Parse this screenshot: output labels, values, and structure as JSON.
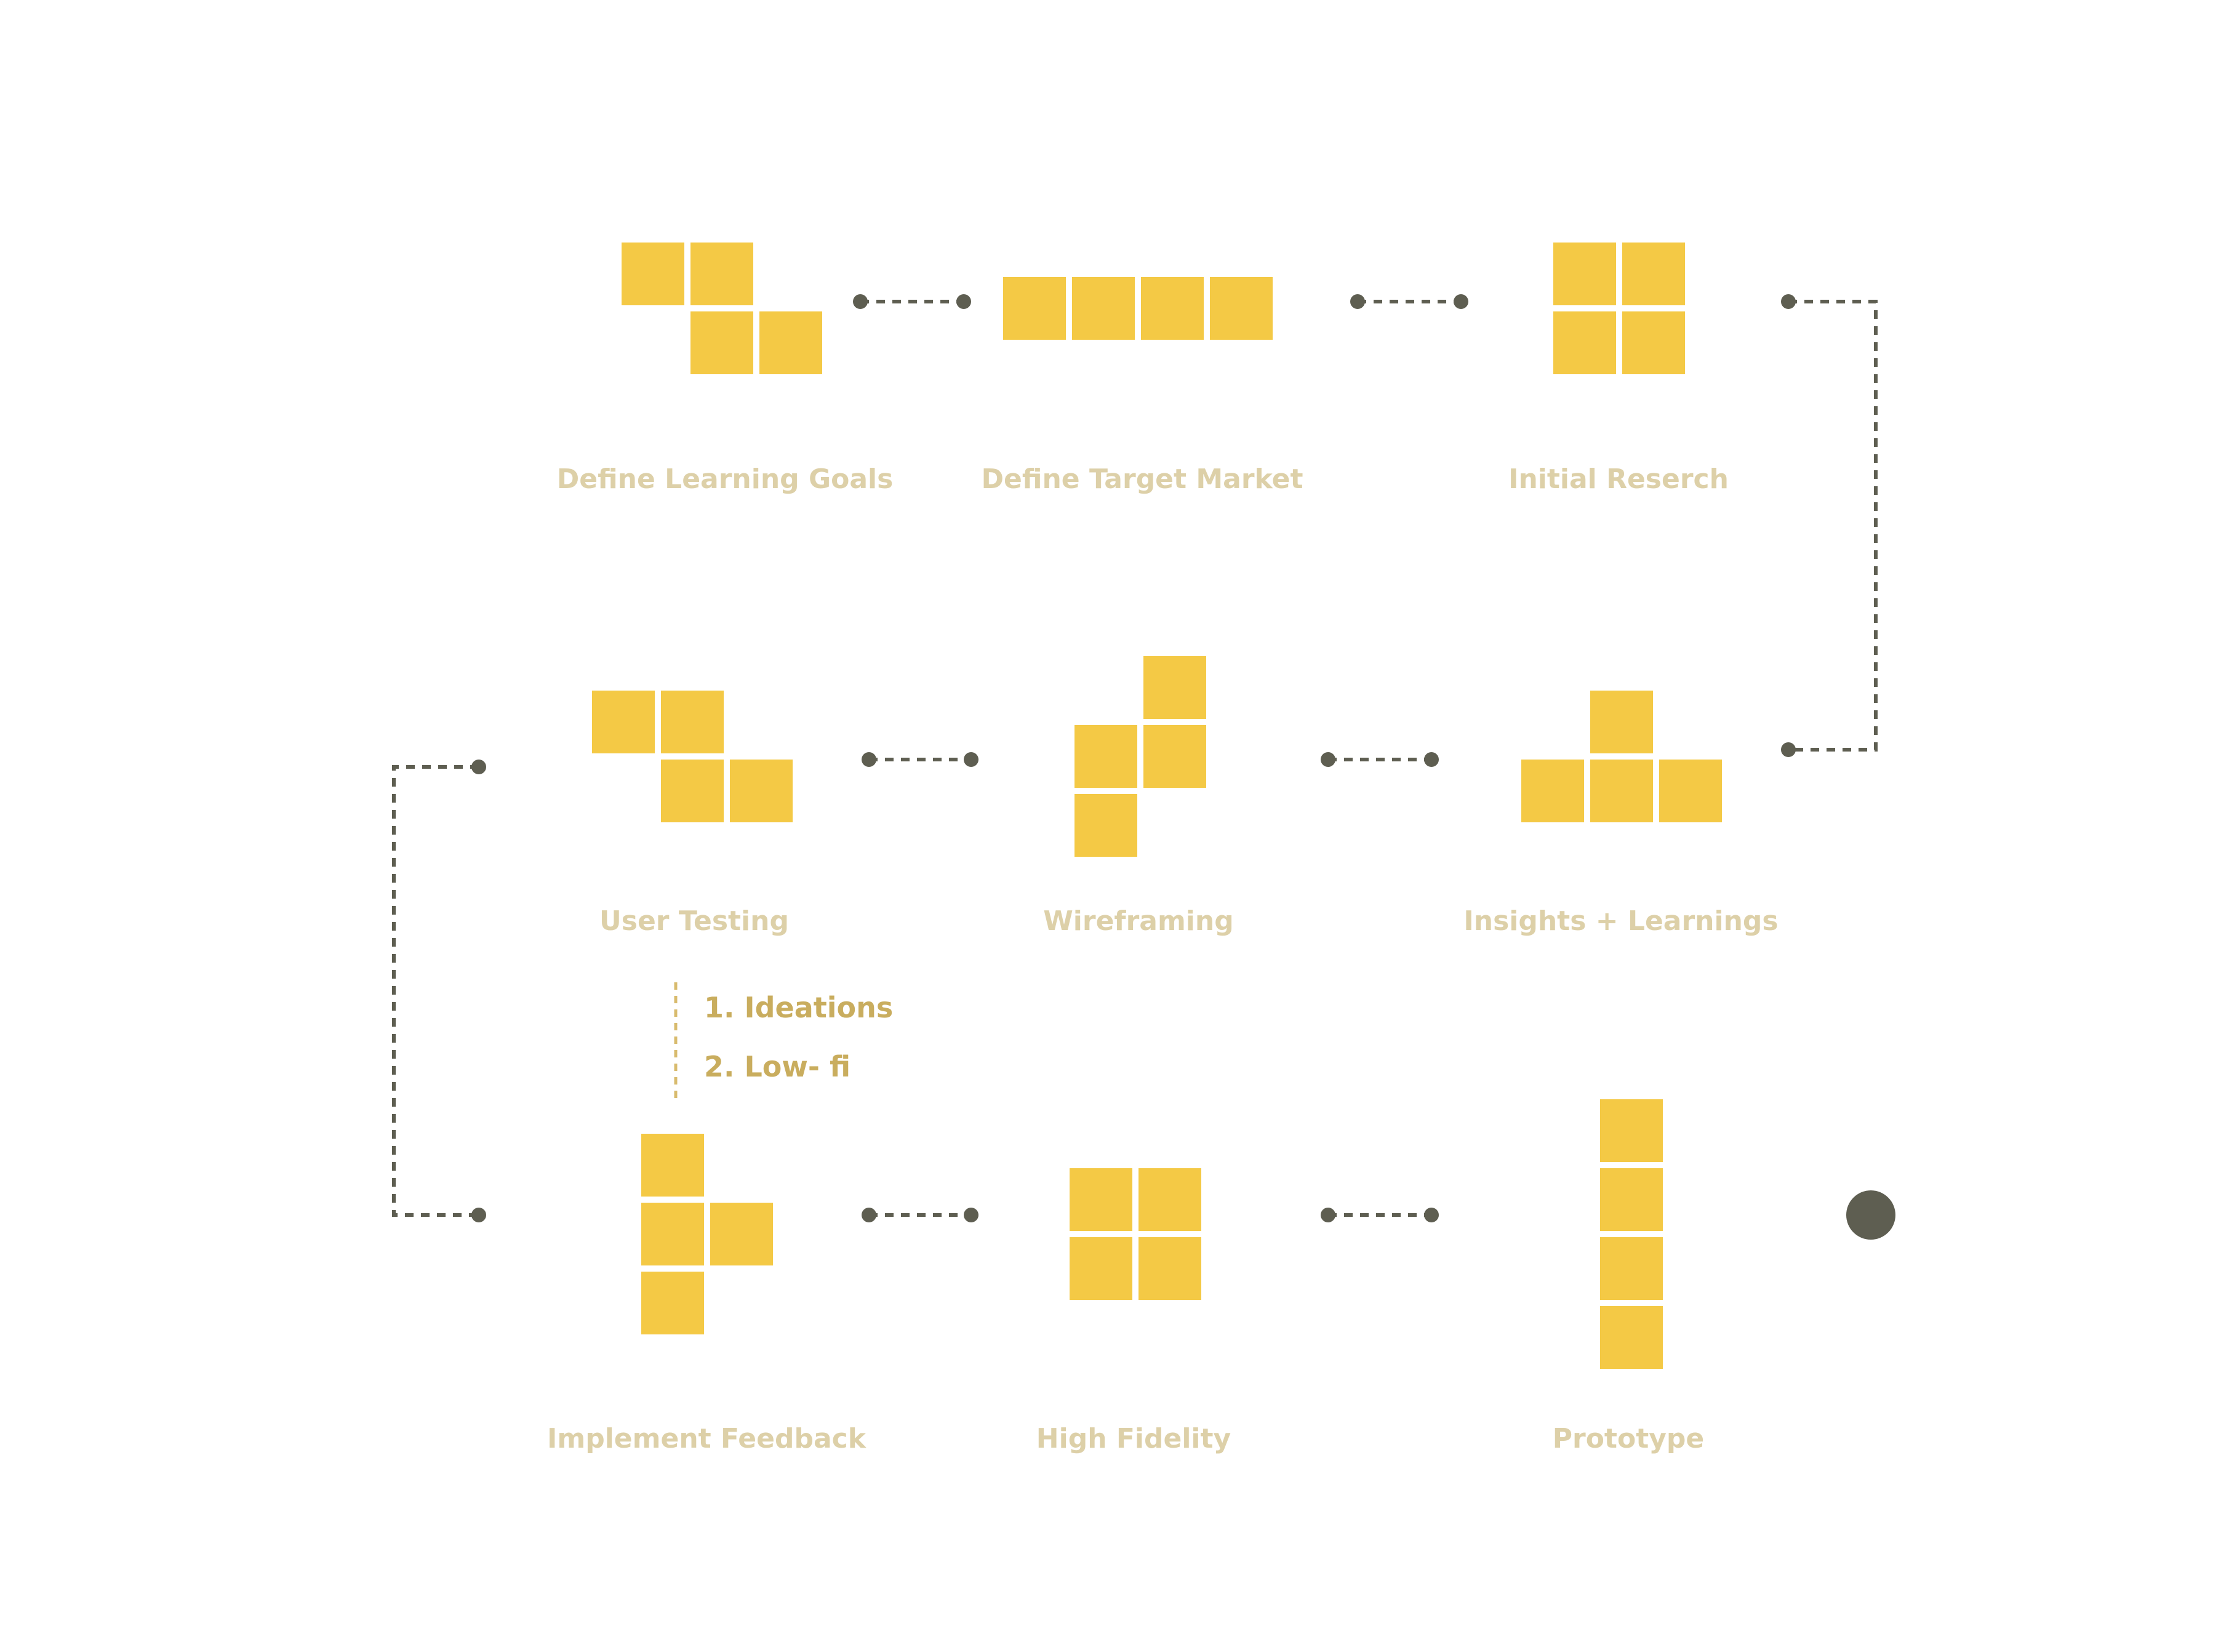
{
  "colors": {
    "block": "#f4c945",
    "connector": "#5e5e51",
    "label": "#ddd0a8",
    "note": "#c9ad5e",
    "note_line": "#d8bb6e",
    "end_dot": "#5e5e51"
  },
  "steps": [
    {
      "label": "Define Learning Goals"
    },
    {
      "label": "Define Target Market"
    },
    {
      "label": "Initial Reserch"
    },
    {
      "label": "User Testing"
    },
    {
      "label": "Wireframing"
    },
    {
      "label": "Insights + Learnings"
    },
    {
      "label": "Implement Feedback"
    },
    {
      "label": "High Fidelity"
    },
    {
      "label": "Prototype"
    }
  ],
  "notes": {
    "item1": "1. Ideations",
    "item2": "2. Low- fi"
  }
}
